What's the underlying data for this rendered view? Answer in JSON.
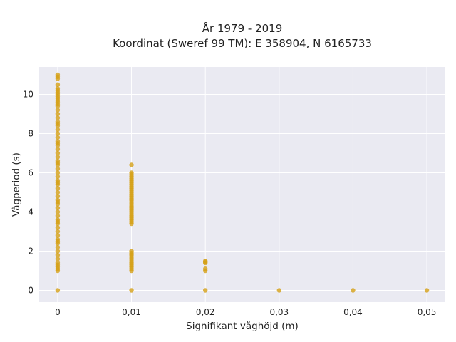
{
  "chart_data": {
    "type": "scatter",
    "title_line1": "År 1979 - 2019",
    "title_line2": "Koordinat (Sweref 99 TM): E 358904, N 6165733",
    "xlabel": "Signifikant våghöjd (m)",
    "ylabel": "Vågperiod (s)",
    "xlim": [
      -0.0025,
      0.0525
    ],
    "ylim": [
      -0.6,
      11.4
    ],
    "x_ticks": [
      0,
      0.01,
      0.02,
      0.03,
      0.04,
      0.05
    ],
    "x_tick_labels": [
      "0",
      "0,01",
      "0,02",
      "0,03",
      "0,04",
      "0,05"
    ],
    "y_ticks": [
      0,
      2,
      4,
      6,
      8,
      10
    ],
    "y_tick_labels": [
      "0",
      "2",
      "4",
      "6",
      "8",
      "10"
    ],
    "grid": true,
    "marker_color": "#D4A017",
    "background_color": "#EAEAF2",
    "series": [
      {
        "x": [
          0,
          0,
          0,
          0,
          0,
          0,
          0,
          0,
          0,
          0,
          0,
          0,
          0,
          0,
          0,
          0,
          0,
          0,
          0,
          0,
          0,
          0,
          0,
          0,
          0,
          0,
          0,
          0,
          0,
          0,
          0,
          0,
          0,
          0,
          0,
          0,
          0,
          0,
          0,
          0,
          0,
          0,
          0,
          0,
          0,
          0,
          0,
          0,
          0,
          0,
          0,
          0,
          0,
          0,
          0,
          0,
          0,
          0,
          0,
          0,
          0,
          0,
          0,
          0,
          0,
          0,
          0.01,
          0.01,
          0.01,
          0.01,
          0.01,
          0.01,
          0.01,
          0.01,
          0.01,
          0.01,
          0.01,
          0.01,
          0.01,
          0.01,
          0.01,
          0.01,
          0.01,
          0.01,
          0.01,
          0.01,
          0.01,
          0.01,
          0.01,
          0.01,
          0.01,
          0.01,
          0.01,
          0.01,
          0.01,
          0.01,
          0.01,
          0.01,
          0.01,
          0.01,
          0.01,
          0.01,
          0.01,
          0.01,
          0.01,
          0.01,
          0.02,
          0.02,
          0.02,
          0.02,
          0.02,
          0.02,
          0.03,
          0.04,
          0.05
        ],
        "y": [
          0,
          1.0,
          1.2,
          1.4,
          1.6,
          1.8,
          2.0,
          2.2,
          2.4,
          2.6,
          2.8,
          3.0,
          3.2,
          3.4,
          3.6,
          3.8,
          4.0,
          4.2,
          4.4,
          4.6,
          4.8,
          5.0,
          5.2,
          5.4,
          5.6,
          5.8,
          6.0,
          6.2,
          6.4,
          6.6,
          6.8,
          7.0,
          7.2,
          7.4,
          7.6,
          7.8,
          8.0,
          8.2,
          8.4,
          8.6,
          8.8,
          9.0,
          9.2,
          9.4,
          9.5,
          9.7,
          9.8,
          9.9,
          10.0,
          10.1,
          10.2,
          10.3,
          10.5,
          10.8,
          10.9,
          11.0,
          1.1,
          1.3,
          2.5,
          3.5,
          4.5,
          5.5,
          6.5,
          7.5,
          8.5,
          9.6,
          0,
          1.0,
          1.1,
          1.2,
          1.3,
          1.4,
          1.5,
          1.6,
          1.7,
          1.8,
          1.9,
          2.0,
          3.4,
          3.5,
          3.6,
          3.7,
          3.8,
          3.9,
          4.0,
          4.1,
          4.2,
          4.3,
          4.4,
          4.5,
          4.6,
          4.7,
          4.8,
          4.9,
          5.0,
          5.1,
          5.2,
          5.3,
          5.4,
          5.5,
          5.6,
          5.7,
          5.8,
          5.9,
          6.0,
          6.4,
          0,
          1.0,
          1.1,
          1.4,
          1.45,
          1.5,
          0,
          0,
          0
        ]
      }
    ]
  }
}
